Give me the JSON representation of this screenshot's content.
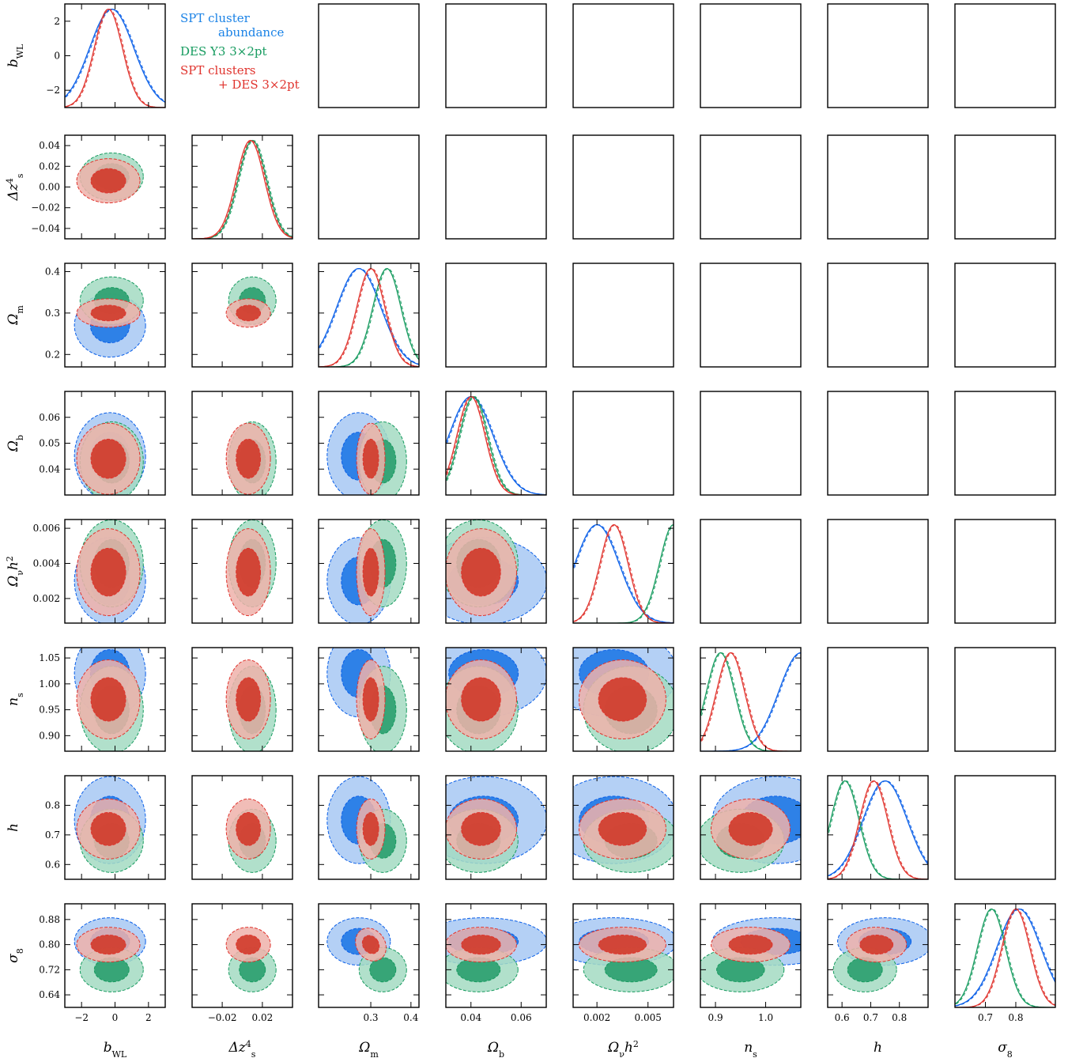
{
  "chart_data": {
    "type": "corner",
    "parameters": [
      {
        "key": "bWL",
        "label_main": "b",
        "label_sub": "WL",
        "ticks": [
          "−2",
          "0",
          "2"
        ],
        "tick_values": [
          -2,
          0,
          2
        ],
        "range": [
          -3,
          3
        ]
      },
      {
        "key": "dz",
        "label_main": "Δz",
        "label_sub": "s",
        "label_sup": "4",
        "ticks": [
          "−0.02",
          "0.02"
        ],
        "tick_values": [
          -0.02,
          0.02
        ],
        "ytick_labels": [
          "0.04",
          "0.02",
          "0.00",
          "−0.02",
          "−0.04"
        ],
        "ytick_values": [
          0.04,
          0.02,
          0.0,
          -0.02,
          -0.04
        ],
        "range": [
          -0.05,
          0.05
        ]
      },
      {
        "key": "om",
        "label_main": "Ω",
        "label_sub": "m",
        "ticks": [
          "0.3",
          "0.4"
        ],
        "tick_values": [
          0.3,
          0.4
        ],
        "ytick_labels": [
          "0.4",
          "0.3",
          "0.2"
        ],
        "ytick_values": [
          0.4,
          0.3,
          0.2
        ],
        "range": [
          0.17,
          0.42
        ]
      },
      {
        "key": "ob",
        "label_main": "Ω",
        "label_sub": "b",
        "ticks": [
          "0.04",
          "0.06"
        ],
        "tick_values": [
          0.04,
          0.06
        ],
        "ytick_labels": [
          "0.06",
          "0.05",
          "0.04"
        ],
        "ytick_values": [
          0.06,
          0.05,
          0.04
        ],
        "range": [
          0.03,
          0.07
        ]
      },
      {
        "key": "onu",
        "label_main": "Ω",
        "label_sub": "ν",
        "label_tail": "h",
        "label_sup": "2",
        "ticks": [
          "0.002",
          "0.005"
        ],
        "tick_values": [
          0.002,
          0.005
        ],
        "ytick_labels": [
          "0.006",
          "0.004",
          "0.002"
        ],
        "ytick_values": [
          0.006,
          0.004,
          0.002
        ],
        "range": [
          0.0006,
          0.0065
        ]
      },
      {
        "key": "ns",
        "label_main": "n",
        "label_sub": "s",
        "ticks": [
          "0.9",
          "1.0"
        ],
        "tick_values": [
          0.9,
          1.0
        ],
        "ytick_labels": [
          "1.05",
          "1.00",
          "0.95",
          "0.90"
        ],
        "ytick_values": [
          1.05,
          1.0,
          0.95,
          0.9
        ],
        "range": [
          0.87,
          1.07
        ]
      },
      {
        "key": "h",
        "label_main": "h",
        "ticks": [
          "0.6",
          "0.7",
          "0.8"
        ],
        "tick_values": [
          0.6,
          0.7,
          0.8
        ],
        "ytick_labels": [
          "0.8",
          "0.7",
          "0.6"
        ],
        "ytick_values": [
          0.8,
          0.7,
          0.6
        ],
        "range": [
          0.55,
          0.9
        ]
      },
      {
        "key": "s8",
        "label_main": "σ",
        "label_sub": "8",
        "ticks": [
          "0.7",
          "0.8"
        ],
        "tick_values": [
          0.7,
          0.8
        ],
        "ytick_labels": [
          "0.88",
          "0.80",
          "0.72",
          "0.64"
        ],
        "ytick_values": [
          0.88,
          0.8,
          0.72,
          0.64
        ],
        "range": [
          0.6,
          0.93
        ]
      }
    ],
    "bwl_ytick_labels": [
      "2",
      "0",
      "−2"
    ],
    "bwl_ytick_values": [
      2,
      0,
      -2
    ],
    "series": [
      {
        "name": "SPT cluster abundance",
        "name_line1": "SPT cluster",
        "name_line2": "abundance",
        "color": "#0a5fe8",
        "fill_light": "#a7c8f3",
        "fill_dark": "#1f78e6"
      },
      {
        "name": "DES Y3 3×2pt",
        "name_line1": "DES Y3 3×2pt",
        "name_line2": "",
        "color": "#169b5f",
        "fill_light": "#a3dbc2",
        "fill_dark": "#2a9e6e"
      },
      {
        "name": "SPT clusters + DES 3×2pt",
        "name_line1": "SPT clusters",
        "name_line2": "+ DES 3×2pt",
        "color": "#e0332d",
        "fill_light": "#eeb2aa",
        "fill_dark": "#d03a2a"
      }
    ],
    "posterior_peaks": {
      "bWL": {
        "SPT cluster abundance": -0.2,
        "SPT clusters + DES 3×2pt": -0.4
      },
      "dz": {
        "DES Y3 3×2pt": 0.01,
        "SPT clusters + DES 3×2pt": 0.008
      },
      "om": {
        "SPT cluster abundance": 0.27,
        "DES Y3 3×2pt": 0.34,
        "SPT clusters + DES 3×2pt": 0.3
      },
      "ob": {
        "SPT cluster abundance": 0.04,
        "DES Y3 3×2pt": 0.041,
        "SPT clusters + DES 3×2pt": 0.04
      },
      "onu": {
        "SPT cluster abundance": 0.002,
        "DES Y3 3×2pt": 0.0065,
        "SPT clusters + DES 3×2pt": 0.003
      },
      "ns": {
        "SPT cluster abundance": 1.07,
        "DES Y3 3×2pt": 0.91,
        "SPT clusters + DES 3×2pt": 0.93
      },
      "h": {
        "SPT cluster abundance": 0.75,
        "DES Y3 3×2pt": 0.61,
        "SPT clusters + DES 3×2pt": 0.71
      },
      "s8": {
        "SPT cluster abundance": 0.81,
        "DES Y3 3×2pt": 0.72,
        "SPT clusters + DES 3×2pt": 0.8
      }
    }
  }
}
